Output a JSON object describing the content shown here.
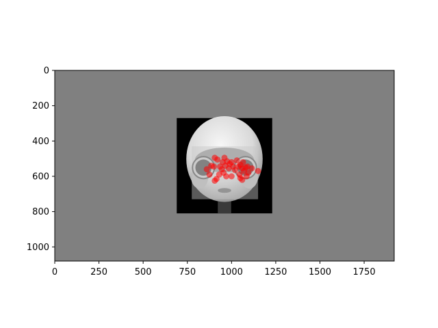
{
  "chart_data": {
    "type": "scatter",
    "title": "",
    "xlabel": "",
    "ylabel": "",
    "xlim": [
      0,
      1920
    ],
    "ylim": [
      1080,
      0
    ],
    "y_inverted": true,
    "grid": false,
    "x_ticks": [
      0,
      250,
      500,
      750,
      1000,
      1250,
      1500,
      1750
    ],
    "y_ticks": [
      0,
      200,
      400,
      600,
      800,
      1000
    ],
    "x_tick_labels": [
      "0",
      "250",
      "500",
      "750",
      "1000",
      "1250",
      "1500",
      "1750"
    ],
    "y_tick_labels": [
      "0",
      "200",
      "400",
      "600",
      "800",
      "1000"
    ],
    "background_color": "#808080",
    "image": {
      "description": "robot face",
      "extent": [
        690,
        1230,
        270,
        810
      ]
    },
    "highlight_box": {
      "extent": [
        775,
        1150,
        430,
        730
      ],
      "color": "#c8c8c8"
    },
    "series": [
      {
        "color": "#ff0000",
        "points": [
          {
            "x": 885,
            "y": 540
          },
          {
            "x": 900,
            "y": 545
          },
          {
            "x": 905,
            "y": 495
          },
          {
            "x": 920,
            "y": 505
          },
          {
            "x": 935,
            "y": 545
          },
          {
            "x": 945,
            "y": 560
          },
          {
            "x": 950,
            "y": 520
          },
          {
            "x": 955,
            "y": 580
          },
          {
            "x": 965,
            "y": 540
          },
          {
            "x": 970,
            "y": 600
          },
          {
            "x": 975,
            "y": 515
          },
          {
            "x": 985,
            "y": 555
          },
          {
            "x": 990,
            "y": 530
          },
          {
            "x": 1000,
            "y": 520
          },
          {
            "x": 1010,
            "y": 545
          },
          {
            "x": 1020,
            "y": 565
          },
          {
            "x": 1030,
            "y": 510
          },
          {
            "x": 1040,
            "y": 545
          },
          {
            "x": 1045,
            "y": 590
          },
          {
            "x": 1050,
            "y": 535
          },
          {
            "x": 1060,
            "y": 555
          },
          {
            "x": 1065,
            "y": 520
          },
          {
            "x": 1070,
            "y": 570
          },
          {
            "x": 1080,
            "y": 550
          },
          {
            "x": 1085,
            "y": 600
          },
          {
            "x": 1090,
            "y": 545
          },
          {
            "x": 1095,
            "y": 580
          },
          {
            "x": 1060,
            "y": 620
          },
          {
            "x": 1050,
            "y": 610
          },
          {
            "x": 905,
            "y": 625
          },
          {
            "x": 915,
            "y": 615
          },
          {
            "x": 1150,
            "y": 570
          },
          {
            "x": 1115,
            "y": 555
          },
          {
            "x": 860,
            "y": 560
          },
          {
            "x": 875,
            "y": 590
          },
          {
            "x": 1000,
            "y": 600
          },
          {
            "x": 930,
            "y": 590
          },
          {
            "x": 960,
            "y": 495
          }
        ]
      }
    ]
  }
}
